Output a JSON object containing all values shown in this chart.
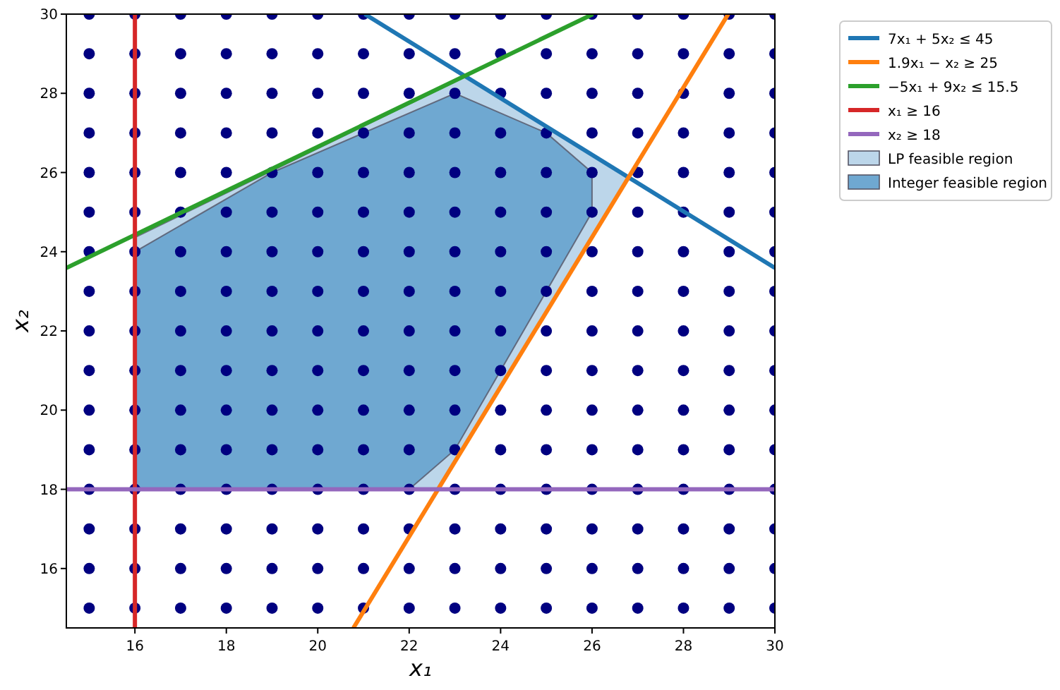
{
  "chart_data": {
    "type": "line",
    "xlabel": "x₁",
    "ylabel": "x₂",
    "xlim": [
      14.5,
      30
    ],
    "ylim": [
      14.5,
      30
    ],
    "xticks": [
      16,
      18,
      20,
      22,
      24,
      26,
      28,
      30
    ],
    "yticks": [
      16,
      18,
      20,
      22,
      24,
      26,
      28,
      30
    ],
    "grid": false,
    "legend": "top right",
    "series": [
      {
        "type": "area",
        "name": "LP feasible region",
        "color": "#bcd6ea",
        "x": [
          16,
          16,
          23.25,
          26.8,
          22.6
        ],
        "values": [
          18,
          24.36,
          28.43,
          25.87,
          18
        ]
      },
      {
        "type": "area",
        "name": "Integer feasible region",
        "color": "#6fa8d1",
        "x": [
          16,
          16,
          19,
          23,
          25,
          26,
          26,
          24,
          23,
          22
        ],
        "values": [
          18,
          24,
          26,
          28,
          27,
          26,
          25,
          21,
          19,
          18
        ]
      },
      {
        "type": "scatter",
        "color": "#000080",
        "marker": "circle",
        "x": [
          15,
          15,
          15,
          15,
          15,
          15,
          15,
          15,
          15,
          15,
          15,
          15,
          15,
          15,
          15,
          15,
          16,
          16,
          16,
          16,
          16,
          16,
          16,
          16,
          16,
          16,
          16,
          16,
          16,
          16,
          16,
          16,
          17,
          17,
          17,
          17,
          17,
          17,
          17,
          17,
          17,
          17,
          17,
          17,
          17,
          17,
          17,
          17,
          18,
          18,
          18,
          18,
          18,
          18,
          18,
          18,
          18,
          18,
          18,
          18,
          18,
          18,
          18,
          18,
          19,
          19,
          19,
          19,
          19,
          19,
          19,
          19,
          19,
          19,
          19,
          19,
          19,
          19,
          19,
          19,
          20,
          20,
          20,
          20,
          20,
          20,
          20,
          20,
          20,
          20,
          20,
          20,
          20,
          20,
          20,
          20,
          21,
          21,
          21,
          21,
          21,
          21,
          21,
          21,
          21,
          21,
          21,
          21,
          21,
          21,
          21,
          21,
          22,
          22,
          22,
          22,
          22,
          22,
          22,
          22,
          22,
          22,
          22,
          22,
          22,
          22,
          22,
          22,
          23,
          23,
          23,
          23,
          23,
          23,
          23,
          23,
          23,
          23,
          23,
          23,
          23,
          23,
          23,
          23,
          24,
          24,
          24,
          24,
          24,
          24,
          24,
          24,
          24,
          24,
          24,
          24,
          24,
          24,
          24,
          24,
          25,
          25,
          25,
          25,
          25,
          25,
          25,
          25,
          25,
          25,
          25,
          25,
          25,
          25,
          25,
          25,
          26,
          26,
          26,
          26,
          26,
          26,
          26,
          26,
          26,
          26,
          26,
          26,
          26,
          26,
          26,
          26,
          27,
          27,
          27,
          27,
          27,
          27,
          27,
          27,
          27,
          27,
          27,
          27,
          27,
          27,
          27,
          27,
          28,
          28,
          28,
          28,
          28,
          28,
          28,
          28,
          28,
          28,
          28,
          28,
          28,
          28,
          28,
          28,
          29,
          29,
          29,
          29,
          29,
          29,
          29,
          29,
          29,
          29,
          29,
          29,
          29,
          29,
          29,
          29,
          30,
          30,
          30,
          30,
          30,
          30,
          30,
          30,
          30,
          30,
          30,
          30,
          30,
          30,
          30,
          30
        ],
        "values": [
          15,
          16,
          17,
          18,
          19,
          20,
          21,
          22,
          23,
          24,
          25,
          26,
          27,
          28,
          29,
          30,
          15,
          16,
          17,
          18,
          19,
          20,
          21,
          22,
          23,
          24,
          25,
          26,
          27,
          28,
          29,
          30,
          15,
          16,
          17,
          18,
          19,
          20,
          21,
          22,
          23,
          24,
          25,
          26,
          27,
          28,
          29,
          30,
          15,
          16,
          17,
          18,
          19,
          20,
          21,
          22,
          23,
          24,
          25,
          26,
          27,
          28,
          29,
          30,
          15,
          16,
          17,
          18,
          19,
          20,
          21,
          22,
          23,
          24,
          25,
          26,
          27,
          28,
          29,
          30,
          15,
          16,
          17,
          18,
          19,
          20,
          21,
          22,
          23,
          24,
          25,
          26,
          27,
          28,
          29,
          30,
          15,
          16,
          17,
          18,
          19,
          20,
          21,
          22,
          23,
          24,
          25,
          26,
          27,
          28,
          29,
          30,
          15,
          16,
          17,
          18,
          19,
          20,
          21,
          22,
          23,
          24,
          25,
          26,
          27,
          28,
          29,
          30,
          15,
          16,
          17,
          18,
          19,
          20,
          21,
          22,
          23,
          24,
          25,
          26,
          27,
          28,
          29,
          30,
          15,
          16,
          17,
          18,
          19,
          20,
          21,
          22,
          23,
          24,
          25,
          26,
          27,
          28,
          29,
          30,
          15,
          16,
          17,
          18,
          19,
          20,
          21,
          22,
          23,
          24,
          25,
          26,
          27,
          28,
          29,
          30,
          15,
          16,
          17,
          18,
          19,
          20,
          21,
          22,
          23,
          24,
          25,
          26,
          27,
          28,
          29,
          30,
          15,
          16,
          17,
          18,
          19,
          20,
          21,
          22,
          23,
          24,
          25,
          26,
          27,
          28,
          29,
          30,
          15,
          16,
          17,
          18,
          19,
          20,
          21,
          22,
          23,
          24,
          25,
          26,
          27,
          28,
          29,
          30,
          15,
          16,
          17,
          18,
          19,
          20,
          21,
          22,
          23,
          24,
          25,
          26,
          27,
          28,
          29,
          30,
          15,
          16,
          17,
          18,
          19,
          20,
          21,
          22,
          23,
          24,
          25,
          26,
          27,
          28,
          29,
          30
        ]
      },
      {
        "name": "7x₁ + 5x₂ ≤ 45",
        "color": "#1f77b4",
        "x": [
          21.03,
          30
        ],
        "values": [
          30,
          23.59
        ]
      },
      {
        "name": "1.9x₁ − x₂ ≥ 25",
        "color": "#ff7f0e",
        "x": [
          20.78,
          28.98
        ],
        "values": [
          14.5,
          30
        ]
      },
      {
        "name": "−5x₁ + 9x₂ ≤ 15.5",
        "color": "#2ca02c",
        "x": [
          14.5,
          26.02
        ],
        "values": [
          23.59,
          30
        ]
      },
      {
        "name": "x₁ ≥ 16",
        "color": "#d62728",
        "x": [
          16,
          16
        ],
        "values": [
          14.5,
          30
        ]
      },
      {
        "name": "x₂ ≥ 18",
        "color": "#9467bd",
        "x": [
          14.5,
          30
        ],
        "values": [
          18,
          18
        ]
      }
    ]
  }
}
